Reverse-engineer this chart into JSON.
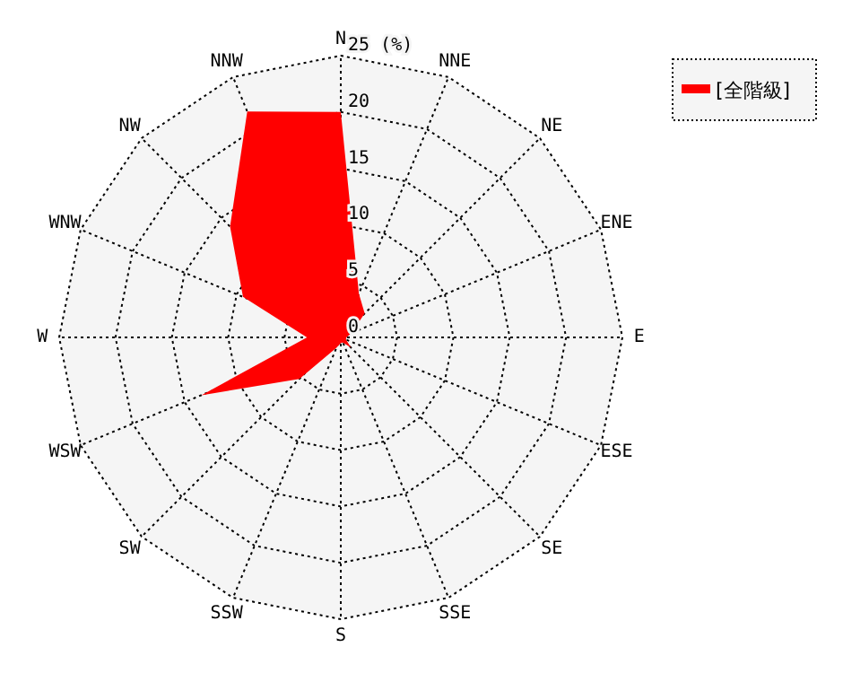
{
  "chart_data": {
    "type": "radar",
    "legend": "top right",
    "grid": true,
    "categories": [
      "N",
      "NNE",
      "NE",
      "ENE",
      "E",
      "ESE",
      "SE",
      "SSE",
      "S",
      "SSW",
      "SW",
      "WSW",
      "W",
      "WNW",
      "NW",
      "NNW"
    ],
    "series": [
      {
        "name": "[全階級]",
        "type": "area",
        "color": "#ff0000",
        "values": [
          20,
          4.2,
          3,
          1,
          0.5,
          0.5,
          1.3,
          0.5,
          0.5,
          1,
          5.2,
          13.4,
          3,
          9.4,
          13.9,
          21.7
        ]
      }
    ],
    "ylim": [
      0,
      25
    ],
    "yticks": [
      0,
      5,
      10,
      15,
      20,
      {
        "value": 25,
        "label": "25 (%)"
      }
    ]
  }
}
